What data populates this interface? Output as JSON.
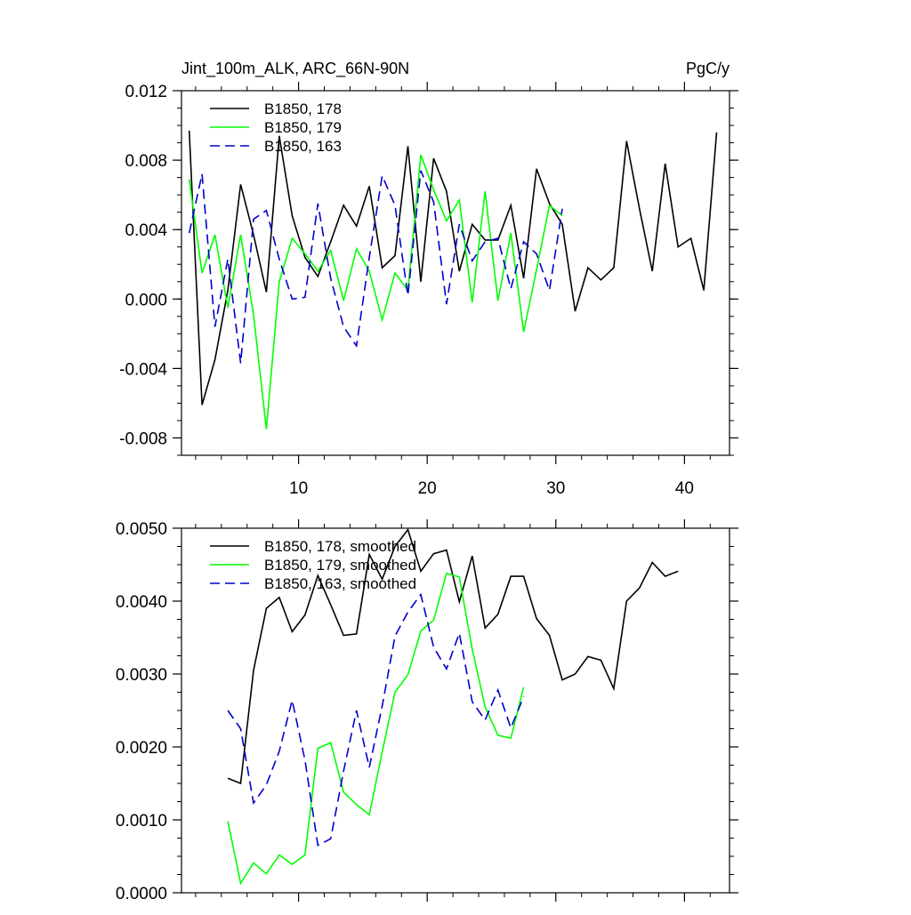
{
  "colors": {
    "background": "#ffffff",
    "axis": "#000000",
    "series_black": "#000000",
    "series_green": "#00ff00",
    "series_blue": "#0000cc"
  },
  "chart_data": [
    {
      "type": "line",
      "title": "Jint_100m_ALK, ARC_66N-90N",
      "units_label": "PgC/y",
      "xlim": [
        0.9,
        43.5
      ],
      "ylim": [
        -0.009,
        0.012
      ],
      "xticks": [
        10,
        20,
        30,
        40
      ],
      "xtick_labels": [
        "10",
        "20",
        "30",
        "40"
      ],
      "yticks": [
        -0.008,
        -0.004,
        0.0,
        0.004,
        0.008,
        0.012
      ],
      "ytick_labels": [
        "-0.008",
        "-0.004",
        "0.000",
        "0.004",
        "0.008",
        "0.012"
      ],
      "legend_position": "top-left",
      "grid": false,
      "series": [
        {
          "name": "B1850, 178",
          "color": "#000000",
          "dash": "solid",
          "x": [
            1.5,
            2.5,
            3.5,
            4.5,
            5.5,
            6.5,
            7.5,
            8.5,
            9.5,
            10.5,
            11.5,
            12.5,
            13.5,
            14.5,
            15.5,
            16.5,
            17.5,
            18.5,
            19.5,
            20.5,
            21.5,
            22.5,
            23.5,
            24.5,
            25.5,
            26.5,
            27.5,
            28.5,
            29.5,
            30.5,
            31.5,
            32.5,
            33.5,
            34.5,
            35.5,
            36.5,
            37.5,
            38.5,
            39.5,
            40.5,
            41.5,
            42.5
          ],
          "y": [
            0.0097,
            -0.0061,
            -0.0035,
            0.0005,
            0.0066,
            0.0037,
            0.0004,
            0.0094,
            0.0048,
            0.0024,
            0.0013,
            0.0033,
            0.0054,
            0.0042,
            0.0065,
            0.0018,
            0.0025,
            0.0088,
            0.001,
            0.0081,
            0.0062,
            0.0016,
            0.0043,
            0.0034,
            0.0034,
            0.0054,
            0.0012,
            0.0075,
            0.0055,
            0.0043,
            -0.0007,
            0.0018,
            0.0011,
            0.0018,
            0.0091,
            0.0052,
            0.0016,
            0.0078,
            0.003,
            0.0035,
            0.0005,
            0.0096
          ]
        },
        {
          "name": "B1850, 179",
          "color": "#00ff00",
          "dash": "solid",
          "x": [
            1.5,
            2.5,
            3.5,
            4.5,
            5.5,
            6.5,
            7.5,
            8.5,
            9.5,
            10.5,
            11.5,
            12.5,
            13.5,
            14.5,
            15.5,
            16.5,
            17.5,
            18.5,
            19.5,
            20.5,
            21.5,
            22.5,
            23.5,
            24.5,
            25.5,
            26.5,
            27.5,
            28.5,
            29.5,
            30.5
          ],
          "y": [
            0.0069,
            0.0015,
            0.0037,
            -0.0005,
            0.0037,
            -0.0009,
            -0.0075,
            0.001,
            0.0035,
            0.0026,
            0.0016,
            0.0028,
            -0.0001,
            0.0029,
            0.0016,
            -0.0012,
            0.0015,
            0.0005,
            0.0083,
            0.0063,
            0.0045,
            0.0057,
            -0.0002,
            0.0062,
            -0.0001,
            0.0038,
            -0.0019,
            0.0017,
            0.0054,
            0.0048
          ]
        },
        {
          "name": "B1850, 163",
          "color": "#0000cc",
          "dash": "dashed",
          "x": [
            1.5,
            2.5,
            3.5,
            4.5,
            5.5,
            6.5,
            7.5,
            8.5,
            9.5,
            10.5,
            11.5,
            12.5,
            13.5,
            14.5,
            15.5,
            16.5,
            17.5,
            18.5,
            19.5,
            20.5,
            21.5,
            22.5,
            23.5,
            24.5,
            25.5,
            26.5,
            27.5,
            28.5,
            29.5,
            30.5
          ],
          "y": [
            0.0038,
            0.0072,
            -0.0016,
            0.0023,
            -0.0037,
            0.0046,
            0.0051,
            0.0023,
            0.0,
            0.0001,
            0.0055,
            0.0012,
            -0.0016,
            -0.0027,
            0.0024,
            0.0071,
            0.0054,
            0.0002,
            0.0074,
            0.0056,
            -0.0003,
            0.0043,
            0.0022,
            0.0033,
            0.0035,
            0.0006,
            0.0033,
            0.0026,
            0.0005,
            0.0052
          ]
        }
      ]
    },
    {
      "type": "line",
      "title": "",
      "xlim": [
        0.9,
        43.5
      ],
      "ylim": [
        0.0,
        0.005
      ],
      "xticks": [
        10,
        20,
        30,
        40
      ],
      "xtick_labels": [],
      "yticks": [
        0.0,
        0.001,
        0.002,
        0.003,
        0.004,
        0.005
      ],
      "ytick_labels": [
        "0.0000",
        "0.0010",
        "0.0020",
        "0.0030",
        "0.0040",
        "0.0050"
      ],
      "legend_position": "top-left",
      "grid": false,
      "series": [
        {
          "name": "B1850, 178, smoothed",
          "color": "#000000",
          "dash": "solid",
          "x": [
            4.5,
            5.5,
            6.5,
            7.5,
            8.5,
            9.5,
            10.5,
            11.5,
            12.5,
            13.5,
            14.5,
            15.5,
            16.5,
            17.5,
            18.5,
            19.5,
            20.5,
            21.5,
            22.5,
            23.5,
            24.5,
            25.5,
            26.5,
            27.5,
            28.5,
            29.5,
            30.5,
            31.5,
            32.5,
            33.5,
            34.5,
            35.5,
            36.5,
            37.5,
            38.5,
            39.5
          ],
          "y": [
            0.00157,
            0.0015,
            0.00305,
            0.0039,
            0.00405,
            0.00358,
            0.00381,
            0.00435,
            0.00395,
            0.00353,
            0.00355,
            0.00464,
            0.0043,
            0.00475,
            0.00498,
            0.00441,
            0.00465,
            0.0047,
            0.00399,
            0.00462,
            0.00363,
            0.00382,
            0.00434,
            0.00434,
            0.00376,
            0.00353,
            0.00292,
            0.003,
            0.00324,
            0.00319,
            0.0028,
            0.004,
            0.00418,
            0.00453,
            0.00434,
            0.00441
          ]
        },
        {
          "name": "B1850, 179, smoothed",
          "color": "#00ff00",
          "dash": "solid",
          "x": [
            4.5,
            5.5,
            6.5,
            7.5,
            8.5,
            9.5,
            10.5,
            11.5,
            12.5,
            13.5,
            14.5,
            15.5,
            16.5,
            17.5,
            18.5,
            19.5,
            20.5,
            21.5,
            22.5,
            23.5,
            24.5,
            25.5,
            26.5,
            27.5
          ],
          "y": [
            0.00098,
            0.00013,
            0.00041,
            0.00026,
            0.00052,
            0.00039,
            0.00052,
            0.00198,
            0.00206,
            0.00138,
            0.00121,
            0.00107,
            0.00193,
            0.00275,
            0.00299,
            0.00359,
            0.00374,
            0.00438,
            0.00433,
            0.00334,
            0.00255,
            0.00216,
            0.00212,
            0.00282
          ]
        },
        {
          "name": "B1850, 163, smoothed",
          "color": "#0000cc",
          "dash": "dashed",
          "x": [
            4.5,
            5.5,
            6.5,
            7.5,
            8.5,
            9.5,
            10.5,
            11.5,
            12.5,
            13.5,
            14.5,
            15.5,
            16.5,
            17.5,
            18.5,
            19.5,
            20.5,
            21.5,
            22.5,
            23.5,
            24.5,
            25.5,
            26.5,
            27.5
          ],
          "y": [
            0.0025,
            0.00225,
            0.00123,
            0.00148,
            0.00194,
            0.00264,
            0.00182,
            0.00065,
            0.00074,
            0.00167,
            0.0025,
            0.00172,
            0.00256,
            0.00352,
            0.00385,
            0.00409,
            0.00337,
            0.00307,
            0.00356,
            0.00262,
            0.00237,
            0.00278,
            0.00226,
            0.00269
          ]
        }
      ]
    }
  ]
}
